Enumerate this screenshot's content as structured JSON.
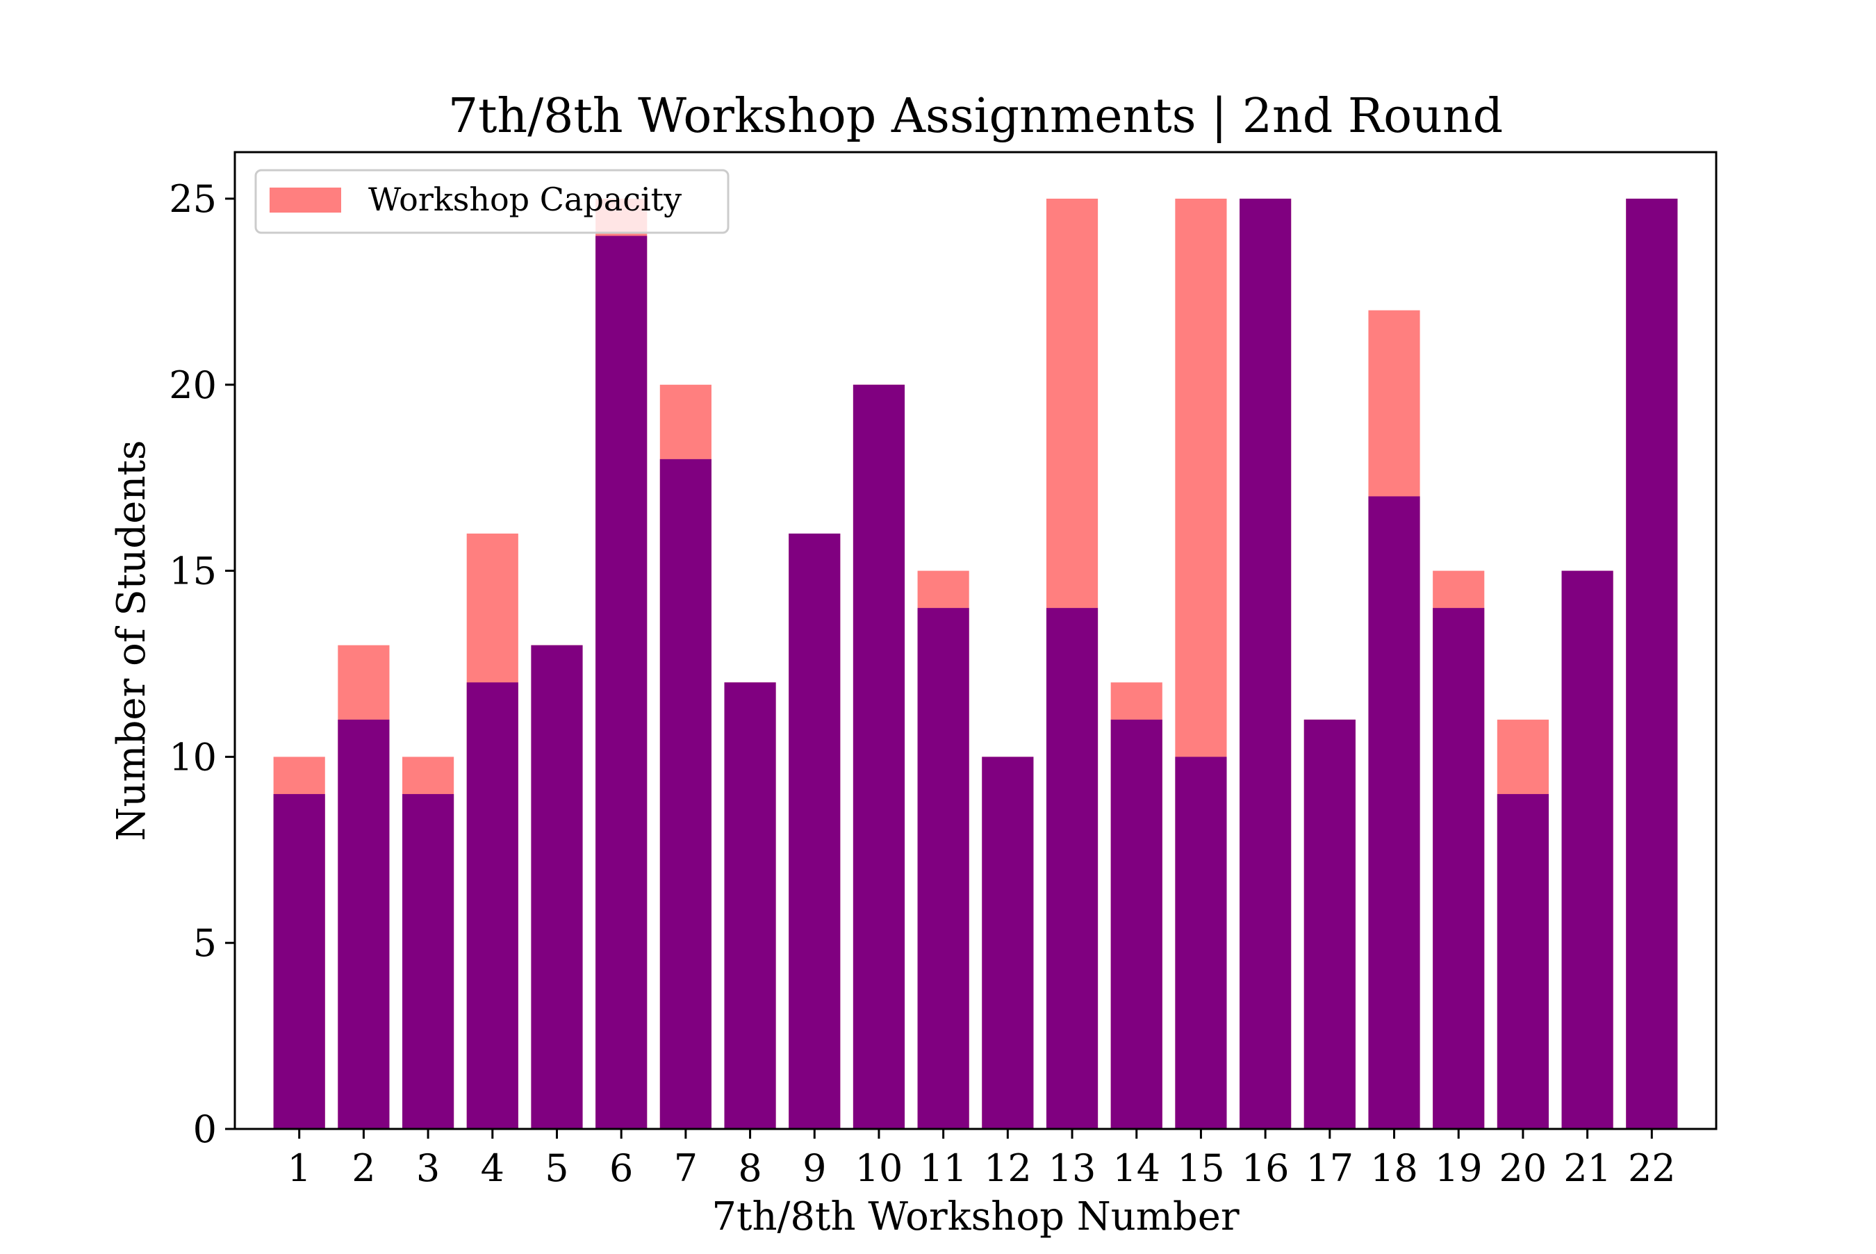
{
  "chart_data": {
    "type": "bar",
    "title": "7th/8th Workshop Assignments | 2nd Round",
    "xlabel": "7th/8th Workshop Number",
    "ylabel": "Number of Students",
    "categories": [
      "1",
      "2",
      "3",
      "4",
      "5",
      "6",
      "7",
      "8",
      "9",
      "10",
      "11",
      "12",
      "13",
      "14",
      "15",
      "16",
      "17",
      "18",
      "19",
      "20",
      "21",
      "22"
    ],
    "series": [
      {
        "name": "Workshop Capacity",
        "color": "#ff7f7f",
        "values": [
          10,
          13,
          10,
          16,
          13,
          25,
          20,
          12,
          16,
          20,
          15,
          10,
          25,
          12,
          25,
          25,
          11,
          22,
          15,
          11,
          15,
          25
        ]
      },
      {
        "color": "#800080",
        "values": [
          9,
          11,
          9,
          12,
          13,
          24,
          18,
          12,
          16,
          20,
          14,
          10,
          14,
          11,
          10,
          25,
          11,
          17,
          14,
          9,
          15,
          25
        ]
      }
    ],
    "ylim": [
      0,
      26.25
    ],
    "yticks": [
      0,
      5,
      10,
      15,
      20,
      25
    ],
    "legend": {
      "placement": "top-left",
      "entries": [
        "Workshop Capacity"
      ]
    },
    "grid": false
  }
}
